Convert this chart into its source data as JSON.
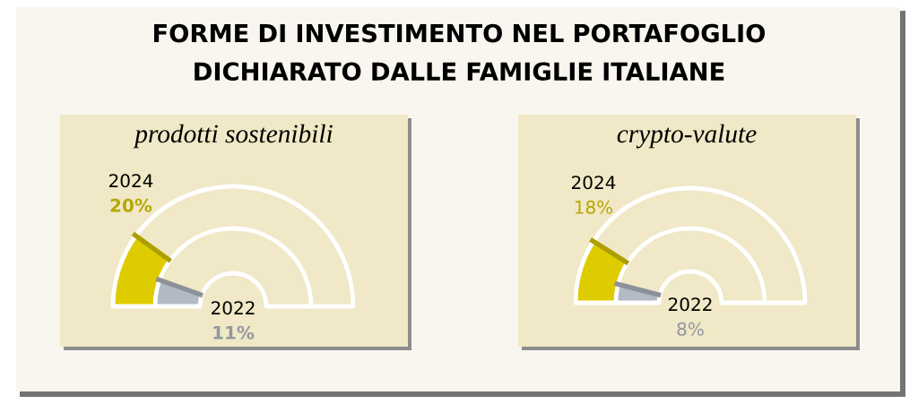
{
  "chart_data": [
    {
      "type": "other",
      "title": "prodotti sostenibili",
      "annotations": [
        "FORME DI INVESTIMENTO NEL PORTAFOGLIO DICHIARATO DALLE FAMIGLIE ITALIANE"
      ],
      "categories": [
        "2024",
        "2022"
      ],
      "values": [
        20,
        11
      ],
      "value_labels": [
        "20%",
        "11%"
      ]
    },
    {
      "type": "other",
      "title": "crypto-valute",
      "categories": [
        "2024",
        "2022"
      ],
      "values": [
        18,
        8
      ],
      "value_labels": [
        "18%",
        "8%"
      ]
    }
  ]
}
